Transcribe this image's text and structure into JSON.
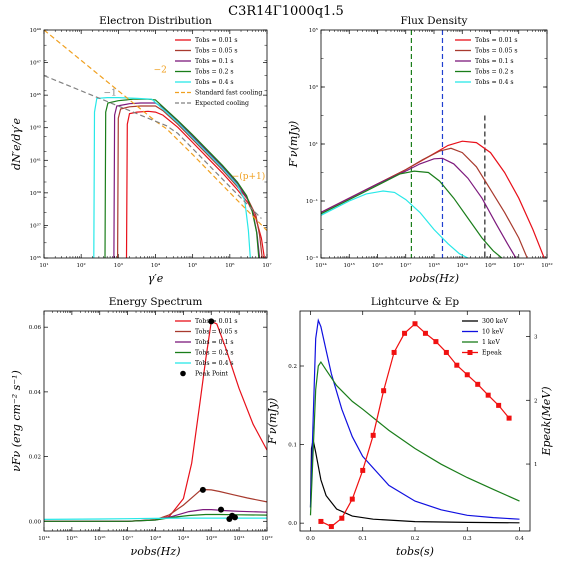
{
  "figure_title": "C3R14Γ1000q1.5",
  "chart_data": [
    {
      "id": "electron",
      "type": "line",
      "title": "Electron Distribution",
      "xlabel": "γ′e",
      "ylabel": "dN′e/dγ′e",
      "xscale": "log",
      "yscale": "log",
      "xlim_exp": [
        1,
        7
      ],
      "ylim_exp": [
        35,
        50
      ],
      "xtick_labels": [
        "10¹",
        "10²",
        "10³",
        "10⁴",
        "10⁵",
        "10⁶",
        "10⁷"
      ],
      "ytick_labels": [
        "10³⁵",
        "10³⁷",
        "10³⁹",
        "10⁴¹",
        "10⁴³",
        "10⁴⁵",
        "10⁴⁷",
        "10⁴⁹"
      ],
      "series": [
        {
          "name": "Tobs = 0.01 s",
          "color": "#e8101a",
          "x": [
            3.22,
            3.24,
            3.3,
            3.5,
            3.8,
            4.0,
            4.2,
            4.6,
            5.0,
            5.4,
            5.8,
            6.2,
            6.5,
            6.7,
            6.85,
            6.93
          ],
          "y": [
            35,
            43.8,
            44.5,
            44.6,
            44.65,
            44.6,
            44.4,
            43.6,
            42.6,
            41.6,
            40.6,
            39.5,
            38.6,
            37.6,
            36.3,
            35
          ]
        },
        {
          "name": "Tobs = 0.05 s",
          "color": "#a83a2e",
          "x": [
            2.98,
            3.0,
            3.06,
            3.3,
            3.6,
            4.0,
            4.2,
            4.6,
            5.0,
            5.4,
            5.8,
            6.2,
            6.5,
            6.7,
            6.8,
            6.87
          ],
          "y": [
            35,
            44.2,
            44.8,
            44.95,
            45.0,
            45.0,
            44.7,
            43.8,
            42.8,
            41.8,
            40.8,
            39.7,
            38.8,
            37.8,
            36.5,
            35
          ]
        },
        {
          "name": "Tobs = 0.1 s",
          "color": "#7d1a7d",
          "x": [
            2.88,
            2.9,
            2.96,
            3.3,
            3.6,
            4.0,
            4.2,
            4.6,
            5.0,
            5.4,
            5.8,
            6.2,
            6.45,
            6.62,
            6.73,
            6.8
          ],
          "y": [
            35,
            44.4,
            45.0,
            45.15,
            45.2,
            45.2,
            44.9,
            44.0,
            43.0,
            42.0,
            41.0,
            39.9,
            39.0,
            38.0,
            36.6,
            35
          ]
        },
        {
          "name": "Tobs = 0.2 s",
          "color": "#1a7d1a",
          "x": [
            2.64,
            2.66,
            2.72,
            3.0,
            3.4,
            3.8,
            4.0,
            4.6,
            5.0,
            5.4,
            5.8,
            6.2,
            6.45,
            6.6,
            6.72,
            6.78
          ],
          "y": [
            35,
            44.6,
            45.2,
            45.35,
            45.45,
            45.45,
            45.4,
            44.05,
            43.1,
            42.1,
            41.1,
            40.0,
            39.1,
            38.1,
            36.7,
            35
          ]
        },
        {
          "name": "Tobs = 0.4 s",
          "color": "#28e8e8",
          "x": [
            2.34,
            2.36,
            2.42,
            2.7,
            3.0,
            3.5,
            3.9,
            4.2,
            4.6,
            5.0,
            5.4,
            5.8,
            6.2,
            6.4,
            6.5,
            6.55
          ],
          "y": [
            35,
            44.6,
            45.5,
            45.55,
            45.55,
            45.5,
            45.45,
            44.8,
            43.9,
            42.9,
            41.9,
            40.9,
            39.8,
            38.8,
            36.8,
            35
          ]
        },
        {
          "name": "Standard fast cooling",
          "color": "#f0a020",
          "dash": "5,3",
          "x": [
            1,
            4.0,
            4.3,
            5.0,
            6.0,
            7.0
          ],
          "y": [
            50,
            44.0,
            43.5,
            41.8,
            39.3,
            36.8
          ]
        },
        {
          "name": "Expected cooling",
          "color": "#808080",
          "dash": "5,3",
          "x": [
            1,
            4.3,
            4.6,
            5.2,
            6.0,
            6.85
          ],
          "y": [
            47,
            43.7,
            43.2,
            41.7,
            39.7,
            37.6
          ]
        }
      ],
      "annotations": [
        {
          "text": "−2",
          "x": 3.95,
          "y": 47.2,
          "color": "#f0a020"
        },
        {
          "text": "−1",
          "x": 2.6,
          "y": 45.7,
          "color": "#808080"
        },
        {
          "text": "−(p+1)",
          "x": 6.05,
          "y": 40.2,
          "color": "#f0a020"
        }
      ]
    },
    {
      "id": "flux",
      "type": "line",
      "title": "Flux Density",
      "xlabel": "νobs(Hz)",
      "ylabel": "F′ν(mJy)",
      "xscale": "log",
      "yscale": "log",
      "xlim_exp": [
        14,
        22
      ],
      "ylim_exp": [
        -3,
        5
      ],
      "xtick_labels": [
        "10¹⁴",
        "10¹⁵",
        "10¹⁶",
        "10¹⁷",
        "10¹⁸",
        "10¹⁹",
        "10²⁰",
        "10²¹",
        "10²²"
      ],
      "ytick_labels": [
        "10⁻³",
        "10⁻¹",
        "10¹",
        "10³",
        "10⁵"
      ],
      "series": [
        {
          "name": "Tobs = 0.01 s",
          "color": "#e8101a",
          "x": [
            14,
            15,
            16,
            17,
            17.8,
            18.5,
            19.0,
            19.5,
            20.0,
            20.5,
            21.0,
            21.5,
            21.9
          ],
          "y": [
            -1.4,
            -0.9,
            -0.4,
            0.1,
            0.55,
            0.95,
            1.1,
            1.05,
            0.7,
            0.0,
            -0.9,
            -2.0,
            -3.0
          ]
        },
        {
          "name": "Tobs = 0.05 s",
          "color": "#a83a2e",
          "x": [
            14,
            15,
            16,
            17,
            17.6,
            18.2,
            18.6,
            19.0,
            19.5,
            20.0,
            20.5,
            21.0,
            21.3
          ],
          "y": [
            -1.4,
            -0.9,
            -0.4,
            0.1,
            0.45,
            0.75,
            0.85,
            0.7,
            0.2,
            -0.6,
            -1.4,
            -2.3,
            -3.0
          ]
        },
        {
          "name": "Tobs = 0.1 s",
          "color": "#7d1a7d",
          "x": [
            14,
            15,
            16,
            17,
            17.5,
            18.0,
            18.3,
            18.7,
            19.2,
            19.7,
            20.2,
            20.6,
            20.9
          ],
          "y": [
            -1.4,
            -0.9,
            -0.4,
            0.05,
            0.3,
            0.48,
            0.5,
            0.3,
            -0.2,
            -0.9,
            -1.8,
            -2.5,
            -3.0
          ]
        },
        {
          "name": "Tobs = 0.2 s",
          "color": "#1a7d1a",
          "x": [
            14,
            15,
            16,
            16.8,
            17.3,
            17.8,
            18.2,
            18.7,
            19.2,
            19.7,
            20.1,
            20.4
          ],
          "y": [
            -1.45,
            -0.95,
            -0.45,
            -0.05,
            0.05,
            0.0,
            -0.3,
            -0.9,
            -1.6,
            -2.3,
            -2.75,
            -3.0
          ]
        },
        {
          "name": "Tobs = 0.4 s",
          "color": "#28e8e8",
          "x": [
            14,
            15,
            15.6,
            16.2,
            16.6,
            17.0,
            17.5,
            18.0,
            18.5,
            18.9,
            19.2
          ],
          "y": [
            -1.5,
            -1.0,
            -0.75,
            -0.65,
            -0.7,
            -0.95,
            -1.4,
            -2.0,
            -2.5,
            -2.85,
            -3.0
          ]
        }
      ],
      "vlines": [
        {
          "x": 17.2,
          "color": "#1a7d1a",
          "y_top_exp": 5
        },
        {
          "x": 18.3,
          "color": "#2040d0",
          "y_top_exp": 5
        },
        {
          "x": 19.8,
          "color": "#222222",
          "y_top_exp": 2
        }
      ]
    },
    {
      "id": "energy",
      "type": "line",
      "title": "Energy Spectrum",
      "xlabel": "νobs(Hz)",
      "ylabel": "νFν (erg cm⁻² s⁻¹)",
      "xscale": "log",
      "yscale": "linear",
      "xlim_exp": [
        14,
        22
      ],
      "ylim": [
        -0.003,
        0.065
      ],
      "xtick_labels": [
        "10¹⁴",
        "10¹⁵",
        "10¹⁶",
        "10¹⁷",
        "10¹⁸",
        "10¹⁹",
        "10²⁰",
        "10²¹",
        "10²²"
      ],
      "yticks": [
        0.0,
        0.02,
        0.04,
        0.06
      ],
      "ytick_labels": [
        "0.00",
        "0.02",
        "0.04",
        "0.06"
      ],
      "series": [
        {
          "name": "Tobs = 0.01 s",
          "color": "#e8101a",
          "x": [
            14,
            17,
            18.0,
            18.5,
            19.0,
            19.3,
            19.6,
            19.8,
            20.0,
            20.2,
            20.5,
            21.0,
            21.5,
            22.0
          ],
          "y": [
            0.0,
            0.0,
            0.0005,
            0.0015,
            0.007,
            0.018,
            0.037,
            0.05,
            0.0618,
            0.061,
            0.054,
            0.041,
            0.03,
            0.022
          ]
        },
        {
          "name": "Tobs = 0.05 s",
          "color": "#a83a2e",
          "x": [
            14,
            17,
            18.0,
            18.5,
            19.0,
            19.4,
            19.6,
            19.8,
            20.0,
            20.3,
            20.8,
            21.3,
            22.0
          ],
          "y": [
            0.0,
            0.0,
            0.0005,
            0.002,
            0.005,
            0.008,
            0.0095,
            0.0098,
            0.0097,
            0.0092,
            0.0082,
            0.0072,
            0.006
          ]
        },
        {
          "name": "Tobs = 0.1 s",
          "color": "#7d1a7d",
          "x": [
            14,
            17,
            18.0,
            18.6,
            19.2,
            19.7,
            20.0,
            20.5,
            21.0,
            22.0
          ],
          "y": [
            0.0,
            0.0,
            0.0004,
            0.0015,
            0.003,
            0.0036,
            0.0036,
            0.0033,
            0.0031,
            0.0028
          ]
        },
        {
          "name": "Tobs = 0.2 s",
          "color": "#1a7d1a",
          "x": [
            14,
            17,
            18.0,
            18.6,
            19.2,
            19.8,
            20.3,
            21.0,
            22.0
          ],
          "y": [
            0.0,
            0.0,
            0.0004,
            0.0012,
            0.0018,
            0.0021,
            0.0021,
            0.002,
            0.0019
          ]
        },
        {
          "name": "Tobs = 0.4 s",
          "color": "#28e8e8",
          "x": [
            14,
            16,
            17,
            18,
            19,
            20,
            21,
            22
          ],
          "y": [
            0.0006,
            0.0007,
            0.0008,
            0.0009,
            0.001,
            0.001,
            0.001,
            0.001
          ]
        }
      ],
      "peaks": {
        "name": "Peak Point",
        "x": [
          20.0,
          19.7,
          20.35,
          20.65,
          20.75,
          20.85
        ],
        "y": [
          0.0618,
          0.0097,
          0.0036,
          0.0007,
          0.0017,
          0.0012
        ]
      }
    },
    {
      "id": "lightcurve",
      "type": "line",
      "title": "Lightcurve & Ep",
      "xlabel": "tobs(s)",
      "ylabel": "F′ν(mJy)",
      "ylabel2": "Epeak(MeV)",
      "xlim": [
        -0.02,
        0.42
      ],
      "ylim": [
        -0.01,
        0.27
      ],
      "y2lim": [
        -0.05,
        3.4
      ],
      "xticks": [
        0.0,
        0.1,
        0.2,
        0.3,
        0.4
      ],
      "xtick_labels": [
        "0.0",
        "0.1",
        "0.2",
        "0.3",
        "0.4"
      ],
      "yticks": [
        0.0,
        0.1,
        0.2
      ],
      "ytick_labels": [
        "0.0",
        "0.1",
        "0.2"
      ],
      "y2ticks": [
        1,
        2,
        3
      ],
      "y2tick_labels": [
        "1",
        "2",
        "3"
      ],
      "series": [
        {
          "name": "300 keV",
          "color": "#000000",
          "x": [
            0.0,
            0.002,
            0.005,
            0.01,
            0.02,
            0.03,
            0.05,
            0.08,
            0.12,
            0.2,
            0.3,
            0.4
          ],
          "y": [
            0.02,
            0.095,
            0.106,
            0.09,
            0.055,
            0.035,
            0.018,
            0.009,
            0.005,
            0.002,
            0.001,
            0.0005
          ]
        },
        {
          "name": "10 keV",
          "color": "#1010e0",
          "x": [
            0.0,
            0.005,
            0.01,
            0.015,
            0.02,
            0.03,
            0.04,
            0.06,
            0.08,
            0.1,
            0.15,
            0.2,
            0.25,
            0.3,
            0.35,
            0.4
          ],
          "y": [
            0.02,
            0.13,
            0.235,
            0.258,
            0.25,
            0.22,
            0.19,
            0.145,
            0.11,
            0.085,
            0.048,
            0.028,
            0.017,
            0.01,
            0.007,
            0.005
          ]
        },
        {
          "name": "1 keV",
          "color": "#1a7d1a",
          "x": [
            0.0,
            0.005,
            0.01,
            0.015,
            0.02,
            0.03,
            0.05,
            0.08,
            0.1,
            0.15,
            0.2,
            0.25,
            0.3,
            0.35,
            0.4
          ],
          "y": [
            0.01,
            0.09,
            0.17,
            0.2,
            0.205,
            0.195,
            0.175,
            0.155,
            0.145,
            0.118,
            0.095,
            0.075,
            0.058,
            0.043,
            0.028
          ]
        },
        {
          "name": "Epeak",
          "color": "#f01010",
          "axis": "y2",
          "markers": true,
          "x": [
            0.02,
            0.04,
            0.06,
            0.08,
            0.1,
            0.12,
            0.14,
            0.16,
            0.18,
            0.2,
            0.22,
            0.24,
            0.26,
            0.28,
            0.3,
            0.32,
            0.34,
            0.36,
            0.38
          ],
          "y": [
            0.1,
            0.02,
            0.15,
            0.45,
            0.9,
            1.45,
            2.15,
            2.75,
            3.05,
            3.2,
            3.05,
            2.92,
            2.75,
            2.55,
            2.4,
            2.25,
            2.08,
            1.92,
            1.72
          ]
        }
      ]
    }
  ]
}
